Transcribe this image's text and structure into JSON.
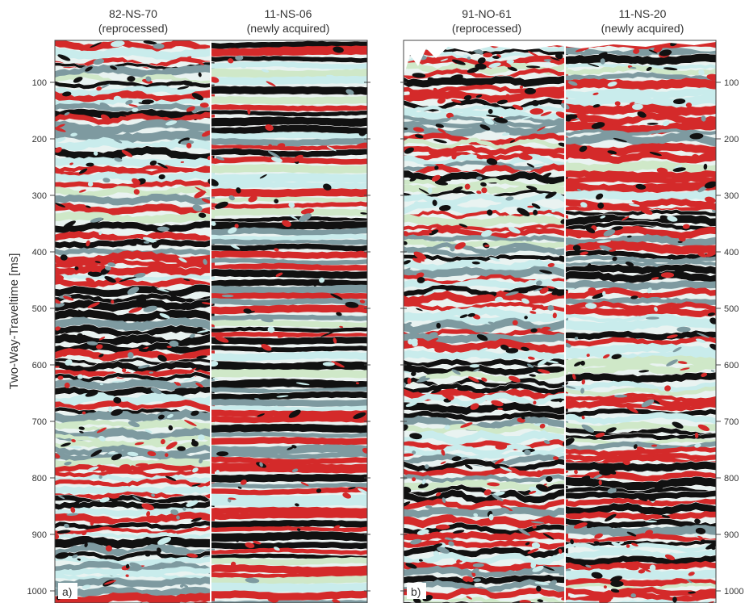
{
  "figure": {
    "y_axis_label": "Two-Way-Traveltime [ms]",
    "y_ticks": [
      "100",
      "200",
      "300",
      "400",
      "500",
      "600",
      "700",
      "800",
      "900",
      "1000"
    ],
    "y_tick_values": [
      100,
      200,
      300,
      400,
      500,
      600,
      700,
      800,
      900,
      1000
    ],
    "panels": [
      {
        "label": "a)",
        "sections": [
          {
            "name": "82-NS-70",
            "subtitle": "(reprocessed)"
          },
          {
            "name": "11-NS-06",
            "subtitle": "(newly acquired)"
          }
        ]
      },
      {
        "label": "b)",
        "sections": [
          {
            "name": "91-NO-61",
            "subtitle": "(reprocessed)"
          },
          {
            "name": "11-NS-20",
            "subtitle": "(newly acquired)"
          }
        ]
      }
    ],
    "colors": {
      "peak": "#d42a2a",
      "trough": "#111111",
      "mid_light": "#c9ecec",
      "mid_grey": "#7e9aa0",
      "pale_green": "#cfe8c8"
    }
  }
}
